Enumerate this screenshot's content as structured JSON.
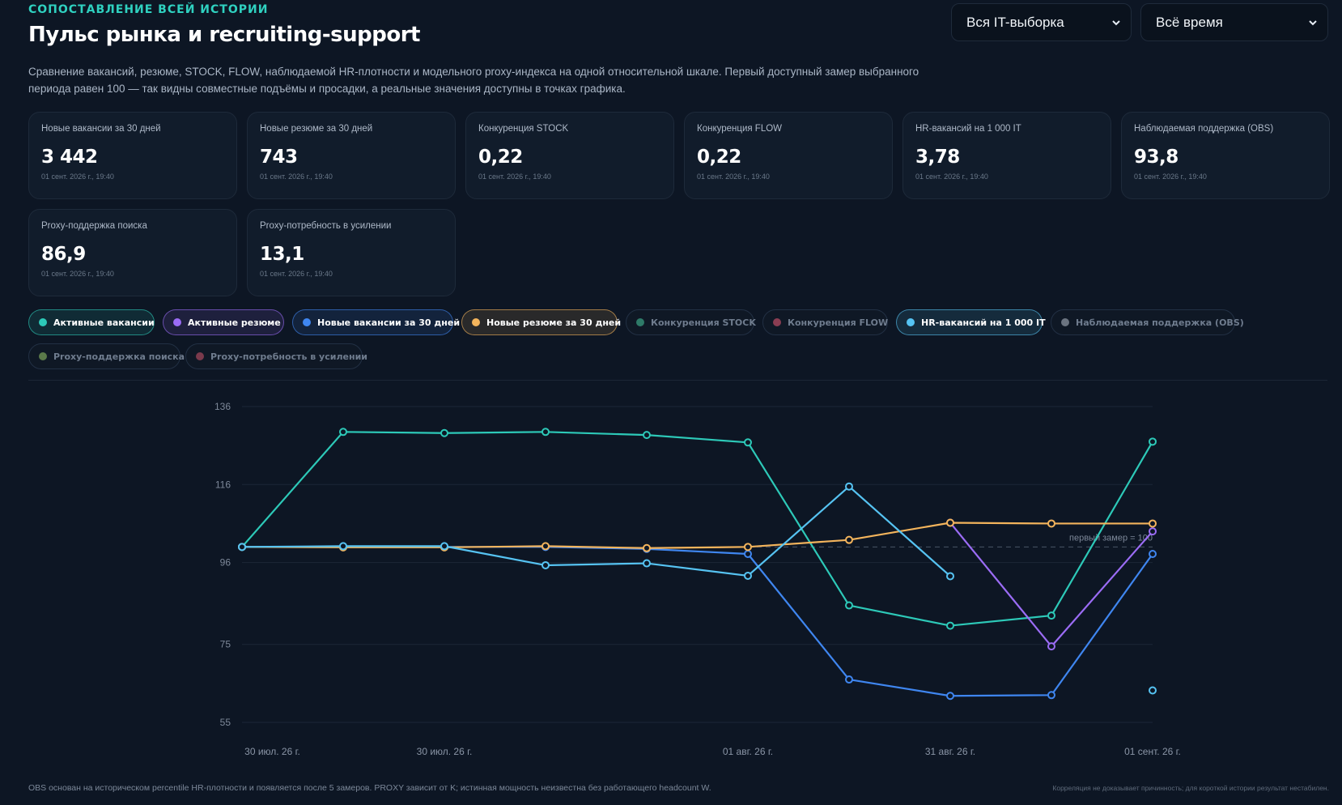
{
  "header": {
    "eyebrow": "СОПОСТАВЛЕНИЕ ВСЕЙ ИСТОРИИ",
    "title": "Пульс рынка и recruiting-support",
    "description": "Сравнение вакансий, резюме, STOCK, FLOW, наблюдаемой HR-плотности и модельного proxy-индекса на одной относительной шкале. Первый доступный замер выбранного периода равен 100 — так видны совместные подъёмы и просадки, а реальные значения доступны в точках графика."
  },
  "filters": {
    "segment": "Вся IT-выборка",
    "period": "Всё время"
  },
  "cards": [
    {
      "label": "Новые вакансии за 30 дней",
      "value": "3 442",
      "ts": "01 сент. 2026 г., 19:40"
    },
    {
      "label": "Новые резюме за 30 дней",
      "value": "743",
      "ts": "01 сент. 2026 г., 19:40"
    },
    {
      "label": "Конкуренция STOCK",
      "value": "0,22",
      "ts": "01 сент. 2026 г., 19:40"
    },
    {
      "label": "Конкуренция FLOW",
      "value": "0,22",
      "ts": "01 сент. 2026 г., 19:40"
    },
    {
      "label": "HR-вакансий на 1 000 IT",
      "value": "3,78",
      "ts": "01 сент. 2026 г., 19:40"
    },
    {
      "label": "Наблюдаемая поддержка (OBS)",
      "value": "93,8",
      "ts": "01 сент. 2026 г., 19:40"
    },
    {
      "label": "Proxy-поддержка поиска",
      "value": "86,9",
      "ts": "01 сент. 2026 г., 19:40"
    },
    {
      "label": "Proxy-потребность в усилении",
      "value": "13,1",
      "ts": "01 сент. 2026 г., 19:40"
    }
  ],
  "chips": [
    {
      "label": "Активные вакансии",
      "color": "#2dc9b8",
      "active": true
    },
    {
      "label": "Активные резюме",
      "color": "#9b6cf5",
      "active": true
    },
    {
      "label": "Новые вакансии за 30 дней",
      "color": "#3f86f0",
      "active": true
    },
    {
      "label": "Новые резюме за 30 дней",
      "color": "#f3b45c",
      "active": true
    },
    {
      "label": "Конкуренция STOCK",
      "color": "#2e7a68",
      "active": false
    },
    {
      "label": "Конкуренция FLOW",
      "color": "#8a3d52",
      "active": false
    },
    {
      "label": "HR-вакансий на 1 000 IT",
      "color": "#56c3f2",
      "active": true
    },
    {
      "label": "Наблюдаемая поддержка (OBS)",
      "color": "#6b7480",
      "active": false
    },
    {
      "label": "Proxy-поддержка поиска",
      "color": "#5b7a4a",
      "active": false
    },
    {
      "label": "Proxy-потребность в усилении",
      "color": "#7a3a4c",
      "active": false
    }
  ],
  "chart_data": {
    "type": "line",
    "x_tick_labels": [
      "30 июл. 26 г.",
      "30 июл. 26 г.",
      "01 авг. 26 г.",
      "31 авг. 26 г.",
      "01 сент. 26 г."
    ],
    "x_tick_positions": [
      0.3,
      2,
      5,
      7,
      9
    ],
    "y_ticks": [
      136,
      116,
      96,
      75,
      55
    ],
    "ylim": [
      55,
      136
    ],
    "baseline": 100,
    "baseline_label": "первый замер = 100",
    "grid": true,
    "series": [
      {
        "name": "Активные вакансии",
        "color": "#2dc9b8",
        "x": [
          0,
          1,
          2,
          3,
          4,
          5,
          6,
          7,
          8,
          9
        ],
        "values": [
          100,
          129.5,
          129.2,
          129.5,
          128.7,
          126.8,
          85,
          79.8,
          82.4,
          127
        ]
      },
      {
        "name": "Активные резюме",
        "color": "#9b6cf5",
        "x": [
          7,
          8,
          9
        ],
        "values": [
          106.2,
          74.5,
          104
        ]
      },
      {
        "name": "Новые вакансии за 30 дней",
        "color": "#3f86f0",
        "x": [
          0,
          1,
          2,
          3,
          4,
          5,
          6,
          7,
          8,
          9
        ],
        "values": [
          100,
          100,
          100,
          100,
          99.5,
          98.2,
          66,
          61.8,
          62,
          98.2
        ]
      },
      {
        "name": "Новые резюме за 30 дней",
        "color": "#f3b45c",
        "x": [
          0,
          1,
          2,
          3,
          4,
          5,
          6,
          7,
          8,
          9
        ],
        "values": [
          100,
          99.9,
          99.9,
          100.2,
          99.7,
          100,
          101.8,
          106.2,
          106,
          106
        ]
      },
      {
        "name": "HR-вакансий на 1 000 IT",
        "color": "#56c3f2",
        "x": [
          0,
          1,
          2,
          3,
          4,
          5,
          6,
          7
        ],
        "values": [
          100,
          100.2,
          100.2,
          95.3,
          95.8,
          92.6,
          115.5,
          92.5
        ],
        "extra_point": {
          "x": 9,
          "value": 63.2
        }
      }
    ]
  },
  "footer": {
    "left": "OBS основан на историческом percentile HR-плотности и появляется после 5 замеров. PROXY зависит от K; истинная мощность неизвестна без работающего headcount W.",
    "right": "Корреляция не доказывает причинность; для короткой истории результат нестабилен."
  }
}
